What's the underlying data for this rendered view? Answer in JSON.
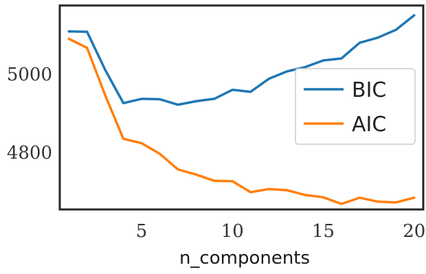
{
  "chart_data": {
    "type": "line",
    "title": "",
    "xlabel": "n_components",
    "ylabel": "",
    "xlim": [
      0.5,
      20.5
    ],
    "ylim": [
      4655,
      5175
    ],
    "x_ticks": [
      5,
      10,
      15,
      20
    ],
    "y_ticks": [
      4800,
      5000
    ],
    "grid": false,
    "legend_position": "center-right",
    "x": [
      1,
      2,
      3,
      4,
      5,
      6,
      7,
      8,
      9,
      10,
      11,
      12,
      13,
      14,
      15,
      16,
      17,
      18,
      19,
      20
    ],
    "series": [
      {
        "name": "BIC",
        "color": "#1f77b4",
        "values": [
          5109,
          5108,
          5011,
          4926,
          4937,
          4936,
          4922,
          4931,
          4937,
          4960,
          4955,
          4988,
          5007,
          5018,
          5035,
          5040,
          5080,
          5093,
          5113,
          5150
        ]
      },
      {
        "name": "AIC",
        "color": "#ff7f0e",
        "values": [
          5090,
          5067,
          4946,
          4835,
          4824,
          4797,
          4757,
          4744,
          4728,
          4727,
          4699,
          4707,
          4704,
          4692,
          4686,
          4669,
          4685,
          4675,
          4673,
          4685
        ]
      }
    ]
  }
}
